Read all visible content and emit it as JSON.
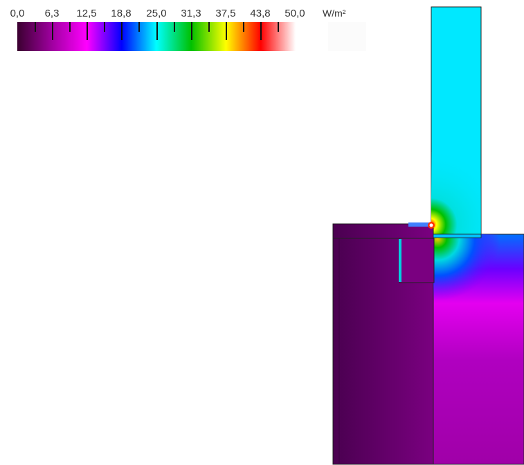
{
  "legend": {
    "ticks": [
      "0,0",
      "6,3",
      "12,5",
      "18,8",
      "25,0",
      "31,3",
      "37,5",
      "43,8",
      "50,0"
    ],
    "unit": "W/m²",
    "min": 0.0,
    "max": 50.0,
    "colors": [
      "#3b0030",
      "#a000a0",
      "#ff00ff",
      "#0000ff",
      "#00ffff",
      "#00c000",
      "#ffff00",
      "#ff0000",
      "#ffffff"
    ]
  }
}
